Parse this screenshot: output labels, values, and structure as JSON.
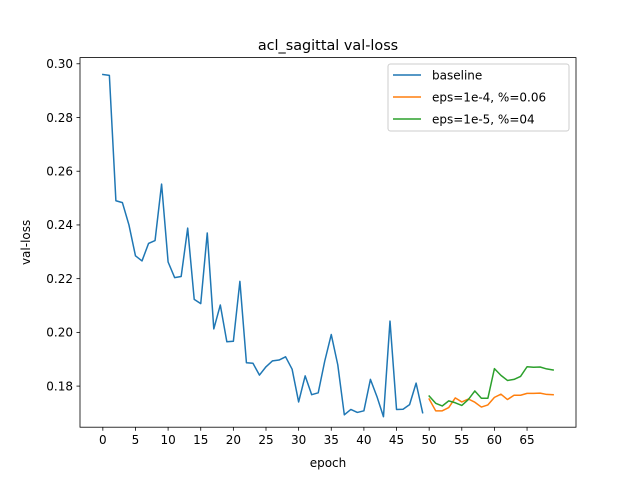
{
  "chart_data": {
    "type": "line",
    "title": "acl_sagittal val-loss",
    "xlabel": "epoch",
    "ylabel": "val-loss",
    "xlim": [
      -3.5,
      72.5
    ],
    "ylim": [
      0.1647,
      0.3023
    ],
    "xticks": [
      0,
      5,
      10,
      15,
      20,
      25,
      30,
      35,
      40,
      45,
      50,
      55,
      60,
      65
    ],
    "yticks": [
      0.18,
      0.2,
      0.22,
      0.24,
      0.26,
      0.28,
      0.3
    ],
    "ytick_labels": [
      "0.18",
      "0.20",
      "0.22",
      "0.24",
      "0.26",
      "0.28",
      "0.30"
    ],
    "grid": false,
    "legend_position": "top-right",
    "series": [
      {
        "name": "baseline",
        "color": "#1f77b4",
        "x": [
          0,
          1,
          2,
          3,
          4,
          5,
          6,
          7,
          8,
          9,
          10,
          11,
          12,
          13,
          14,
          15,
          16,
          17,
          18,
          19,
          20,
          21,
          22,
          23,
          24,
          25,
          26,
          27,
          28,
          29,
          30,
          31,
          32,
          33,
          34,
          35,
          36,
          37,
          38,
          39,
          40,
          41,
          42,
          43,
          44,
          45,
          46,
          47,
          48,
          49
        ],
        "values": [
          0.296,
          0.2957,
          0.249,
          0.2483,
          0.24,
          0.2285,
          0.2266,
          0.2331,
          0.2342,
          0.2552,
          0.2262,
          0.2204,
          0.2208,
          0.2388,
          0.2123,
          0.2107,
          0.237,
          0.2013,
          0.2102,
          0.1965,
          0.1967,
          0.219,
          0.1887,
          0.1885,
          0.1841,
          0.1872,
          0.1894,
          0.1897,
          0.1909,
          0.1863,
          0.1741,
          0.1838,
          0.1768,
          0.1775,
          0.1893,
          0.1992,
          0.1879,
          0.1693,
          0.1713,
          0.1702,
          0.1708,
          0.1825,
          0.1761,
          0.1686,
          0.2042,
          0.1713,
          0.1714,
          0.1731,
          0.1811,
          0.1701
        ]
      },
      {
        "name": "eps=1e-4, %=0.06",
        "color": "#ff7f0e",
        "x": [
          50,
          51,
          52,
          53,
          54,
          55,
          56,
          57,
          58,
          59,
          60,
          61,
          62,
          63,
          64,
          65,
          66,
          67,
          68,
          69
        ],
        "values": [
          0.1752,
          0.1708,
          0.1708,
          0.172,
          0.1756,
          0.1741,
          0.1752,
          0.174,
          0.1722,
          0.173,
          0.1758,
          0.177,
          0.175,
          0.1766,
          0.1766,
          0.1773,
          0.1773,
          0.1774,
          0.1769,
          0.1768
        ]
      },
      {
        "name": "eps=1e-5, %=04",
        "color": "#2ca02c",
        "x": [
          50,
          51,
          52,
          53,
          54,
          55,
          56,
          57,
          58,
          59,
          60,
          61,
          62,
          63,
          64,
          65,
          66,
          67,
          68,
          69
        ],
        "values": [
          0.1763,
          0.1736,
          0.1726,
          0.1745,
          0.1738,
          0.1728,
          0.175,
          0.1782,
          0.1755,
          0.1755,
          0.1865,
          0.184,
          0.1821,
          0.1825,
          0.1836,
          0.1872,
          0.187,
          0.1871,
          0.1864,
          0.186
        ]
      }
    ]
  }
}
